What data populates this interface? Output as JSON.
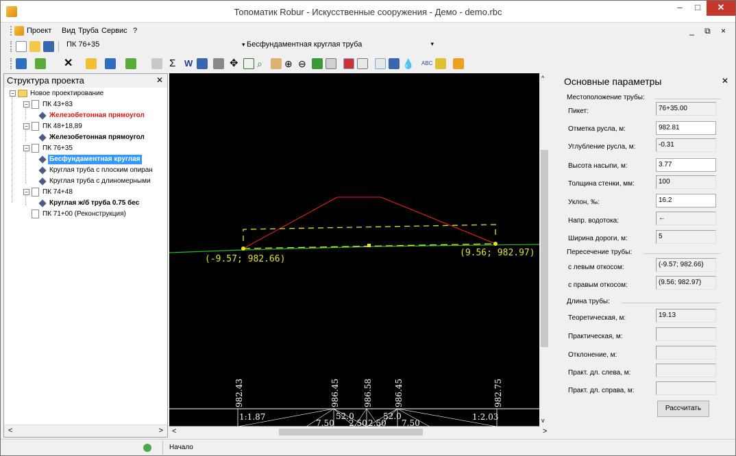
{
  "window": {
    "title": "Топоматик Robur - Искусственные сооружения - Демо - demo.rbc",
    "minimize": "–",
    "maximize": "□",
    "close": "✕"
  },
  "menu": {
    "items": [
      "Проект",
      "Вид",
      "Труба",
      "Сервис",
      "?"
    ],
    "mdi_controls": "_ ⧉ ×"
  },
  "toolbar1": {
    "pk_value": "ПК 76+35",
    "pipe_type": "Бесфундаментная круглая труба"
  },
  "left_panel": {
    "title": "Структура проекта",
    "tree": {
      "root": "Новое проектирование",
      "pk1": "ПК 43+83",
      "pk1_child": "Железобетонная прямоугол",
      "pk2": "ПК 48+18,89",
      "pk2_child": "Железобетонная прямоугол",
      "pk3": "ПК 76+35",
      "pk3_child1": "Бесфундаментная круглая",
      "pk3_child2": "Круглая труба с плоским опиран",
      "pk3_child3": "Круглая труба с длиномерными",
      "pk4": "ПК 74+48",
      "pk4_child": "Круглая ж/б труба 0.75 бес",
      "pk5": "ПК 71+00 (Реконструкция)"
    }
  },
  "drawing": {
    "left_point_label": "(-9.57; 982.66)",
    "right_point_label": "(9.56; 982.97)",
    "elev1": "982.43",
    "elev2": "986.45",
    "elev3": "986.58",
    "elev4": "986.45",
    "elev5": "982.75",
    "slope_left": "1:1.87",
    "slope_right": "1:2.03",
    "w1": "52.0",
    "w2": "52.0",
    "d1": "7.50",
    "d2": "2.50",
    "d3": "2.50",
    "d4": "7.50"
  },
  "right_panel": {
    "title": "Основные параметры",
    "group_location": "Местоположение трубы:",
    "picket_label": "Пикет:",
    "picket_value": "76+35.00",
    "bed_label": "Отметка русла, м:",
    "bed_value": "982.81",
    "deepen_label": "Углубление русла, м:",
    "deepen_value": "-0.31",
    "embank_label": "Высота насыпи, м:",
    "embank_value": "3.77",
    "wall_label": "Толщина стенки, мм:",
    "wall_value": "100",
    "slope_label": "Уклон, ‰:",
    "slope_value": "16.2",
    "flow_label": "Напр. водотока:",
    "flow_value": "←",
    "road_label": "Ширина дороги, м:",
    "road_value": "5",
    "group_cross": "Пересечение трубы:",
    "left_slope_label": "с левым откосом:",
    "left_slope_value": "(-9.57; 982.66)",
    "right_slope_label": "с правым откосом:",
    "right_slope_value": "(9.56; 982.97)",
    "group_length": "Длина трубы:",
    "theor_label": "Теоретическая, м:",
    "theor_value": "19.13",
    "pract_label": "Практическая, м:",
    "dev_label": "Отклонение, м:",
    "pract_left_label": "Практ. дл. слева, м:",
    "pract_right_label": "Практ. дл. справа, м:",
    "calc_button": "Рассчитать"
  },
  "status": {
    "text": "Начало"
  },
  "colors": {
    "embankment": "#ff1a1a",
    "pipe": "#e6e619",
    "ground": "#1fbf1f",
    "selection": "#3399ff"
  }
}
